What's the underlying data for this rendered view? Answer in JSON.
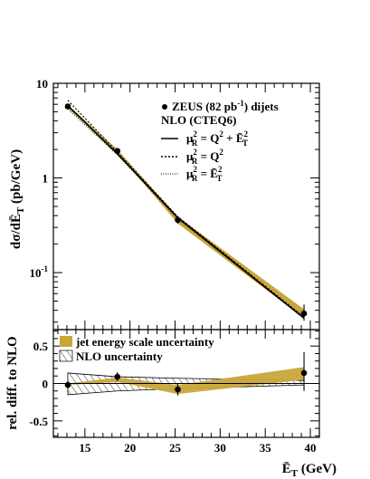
{
  "chart_data": [
    {
      "type": "line",
      "panel": "top",
      "yscale": "log",
      "ylim": [
        0.025,
        10
      ],
      "xlim": [
        11.5,
        41
      ],
      "ylabel": "dσ/dĒT (pb/GeV)",
      "ylabel_main": "dσ/dĒ",
      "ylabel_sub": "T",
      "ylabel_unit": " (pb/GeV)",
      "y_tick_labels": [
        {
          "value": 10,
          "label": "10"
        },
        {
          "value": 1,
          "label": "1"
        },
        {
          "value": 0.1,
          "label": "10",
          "sup": "-1"
        }
      ],
      "legend": {
        "data_label": "ZEUS (82 pb",
        "data_label_sup": "-1",
        "data_label_tail": ") dijets",
        "nlo_title": "NLO (CTEQ6)",
        "entries": [
          {
            "style": "solid",
            "label": "μ²R = Q² + Ē²T",
            "label_main": "μ",
            "label_sup": "2",
            "label_sub": "R",
            "label_rest": " = Q",
            "label_rest_sup": "2",
            "label_rest2": " + Ē",
            "label_rest2_sup": "2",
            "label_rest2_sub": "T"
          },
          {
            "style": "dashed",
            "label": "μ²R = Q²",
            "label_main": "μ",
            "label_sup": "2",
            "label_sub": "R",
            "label_rest": " = Q",
            "label_rest_sup": "2"
          },
          {
            "style": "dotted",
            "label": "μ²R = Ē²T",
            "label_main": "μ",
            "label_sup": "2",
            "label_sub": "R",
            "label_rest": " = Ē",
            "label_rest_sup": "2",
            "label_rest_sub": "T"
          }
        ]
      },
      "series": [
        {
          "name": "ZEUS (82 pb-1) dijets",
          "kind": "points",
          "x": [
            13.1,
            18.6,
            25.3,
            39.3
          ],
          "y": [
            5.7,
            1.93,
            0.36,
            0.037
          ],
          "yerr_low": [
            0.2,
            0.06,
            0.03,
            0.006
          ],
          "yerr_high": [
            0.2,
            0.06,
            0.03,
            0.009
          ]
        },
        {
          "name": "μ²R = Q² + Ē²T",
          "kind": "line",
          "style": "solid",
          "x": [
            13.1,
            18.6,
            25.3,
            39.3
          ],
          "y": [
            5.8,
            1.8,
            0.38,
            0.033
          ]
        },
        {
          "name": "μ²R = Q²",
          "kind": "line",
          "style": "dashed",
          "x": [
            13.1,
            18.6,
            25.3,
            39.3
          ],
          "y": [
            6.6,
            1.88,
            0.39,
            0.034
          ]
        },
        {
          "name": "μ²R = Ē²T",
          "kind": "line",
          "style": "dotted",
          "x": [
            13.1,
            18.6,
            25.3,
            39.3
          ],
          "y": [
            5.4,
            1.76,
            0.37,
            0.033
          ]
        },
        {
          "name": "jet energy scale uncertainty",
          "kind": "band",
          "x": [
            13.1,
            18.6,
            25.3,
            39.3
          ],
          "y_low": [
            5.5,
            1.85,
            0.33,
            0.033
          ],
          "y_high": [
            5.95,
            2.0,
            0.39,
            0.041
          ]
        }
      ]
    },
    {
      "type": "line",
      "panel": "bottom",
      "xlim": [
        11.5,
        41
      ],
      "ylim": [
        -0.72,
        0.72
      ],
      "xlabel": "ĒT (GeV)",
      "xlabel_main": "Ē",
      "xlabel_sub": "T",
      "xlabel_unit": " (GeV)",
      "ylabel": "rel. diff. to NLO",
      "x_ticks": [
        15,
        20,
        25,
        30,
        35,
        40
      ],
      "y_tick_labels": [
        {
          "value": 0.5,
          "label": "0.5"
        },
        {
          "value": 0,
          "label": "0"
        },
        {
          "value": -0.5,
          "label": "-0.5"
        }
      ],
      "legend": [
        {
          "kind": "band",
          "label": "jet energy scale uncertainty"
        },
        {
          "kind": "hatched",
          "label": "NLO uncertainty"
        }
      ],
      "series": [
        {
          "name": "data",
          "kind": "points",
          "x": [
            13.1,
            18.6,
            25.3,
            39.3
          ],
          "y": [
            -0.02,
            0.09,
            -0.08,
            0.14
          ],
          "yerr_low": [
            0.04,
            0.06,
            0.08,
            0.24
          ],
          "yerr_high": [
            0.04,
            0.06,
            0.08,
            0.28
          ]
        },
        {
          "name": "jet energy scale uncertainty",
          "kind": "band",
          "x": [
            13.1,
            18.6,
            25.3,
            39.3
          ],
          "y_low": [
            -0.02,
            0.02,
            -0.14,
            0.05
          ],
          "y_high": [
            0.0,
            0.08,
            -0.02,
            0.22
          ]
        },
        {
          "name": "NLO uncertainty",
          "kind": "hatched",
          "x": [
            13.1,
            18.6,
            25.3,
            39.3
          ],
          "y_low": [
            -0.15,
            -0.1,
            -0.07,
            -0.02
          ],
          "y_high": [
            0.14,
            0.09,
            0.07,
            0.04
          ]
        }
      ]
    }
  ]
}
